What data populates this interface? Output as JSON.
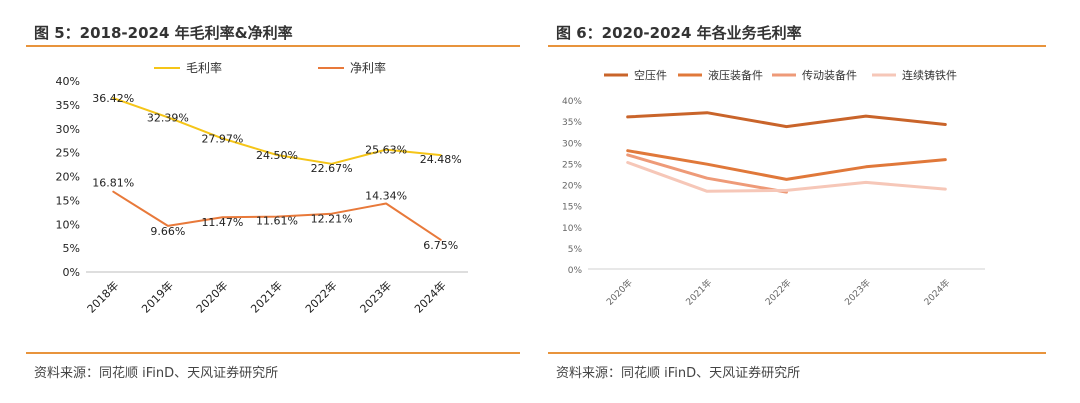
{
  "left": {
    "title": "图 5：2018-2024 年毛利率&净利率",
    "source": "资料来源：同花顺 iFinD、天风证券研究所"
  },
  "right": {
    "title": "图 6：2020-2024 年各业务毛利率",
    "source": "资料来源：同花顺 iFinD、天风证券研究所"
  },
  "chart_data": [
    {
      "type": "line",
      "title": "2018-2024 年毛利率&净利率",
      "categories": [
        "2018年",
        "2019年",
        "2020年",
        "2021年",
        "2022年",
        "2023年",
        "2024年"
      ],
      "ylim": [
        0,
        40
      ],
      "yticks": [
        "0%",
        "5%",
        "10%",
        "15%",
        "20%",
        "25%",
        "30%",
        "35%",
        "40%"
      ],
      "grid": false,
      "legend_position": "top",
      "series": [
        {
          "name": "毛利率",
          "color": "#F5C518",
          "values": [
            36.42,
            32.39,
            27.97,
            24.5,
            22.67,
            25.63,
            24.48
          ],
          "labels": [
            "36.42%",
            "32.39%",
            "27.97%",
            "24.50%",
            "22.67%",
            "25.63%",
            "24.48%"
          ]
        },
        {
          "name": "净利率",
          "color": "#E8793A",
          "values": [
            16.81,
            9.66,
            11.47,
            11.61,
            12.21,
            14.34,
            6.75
          ],
          "labels": [
            "16.81%",
            "9.66%",
            "11.47%",
            "11.61%",
            "12.21%",
            "14.34%",
            "6.75%"
          ]
        }
      ]
    },
    {
      "type": "line",
      "title": "2020-2024 年各业务毛利率",
      "categories": [
        "2020年",
        "2021年",
        "2022年",
        "2023年",
        "2024年"
      ],
      "ylim": [
        0,
        40
      ],
      "yticks": [
        "0%",
        "5%",
        "10%",
        "15%",
        "20%",
        "25%",
        "30%",
        "35%",
        "40%"
      ],
      "grid": false,
      "legend_position": "top",
      "series": [
        {
          "name": "空压件",
          "color": "#C9642A",
          "values": [
            36.0,
            37.0,
            33.7,
            36.2,
            34.2
          ]
        },
        {
          "name": "液压装备件",
          "color": "#E0783A",
          "values": [
            28.0,
            24.8,
            21.2,
            24.2,
            25.9
          ]
        },
        {
          "name": "传动装备件",
          "color": "#EE9A78",
          "values": [
            27.0,
            21.5,
            18.2,
            null,
            null
          ]
        },
        {
          "name": "连续铸铁件",
          "color": "#F6C7B8",
          "values": [
            25.2,
            18.4,
            18.6,
            20.5,
            18.9
          ]
        }
      ]
    }
  ]
}
